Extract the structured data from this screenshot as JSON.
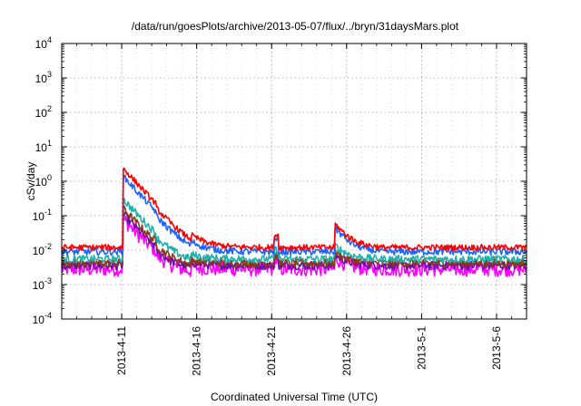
{
  "chart_data": {
    "type": "line",
    "title": "/data/run/goesPlots/archive/2013-05-07/flux/../bryn/31daysMars.plot",
    "xlabel": "Coordinated Universal Time (UTC)",
    "ylabel": "cSv/day",
    "yscale": "log",
    "ylim_exponents": [
      -4,
      4
    ],
    "y_tick_labels": [
      {
        "exp": -4,
        "base": "10",
        "sup": "-4"
      },
      {
        "exp": -3,
        "base": "10",
        "sup": "-3"
      },
      {
        "exp": -2,
        "base": "10",
        "sup": "-2"
      },
      {
        "exp": -1,
        "base": "10",
        "sup": "-1"
      },
      {
        "exp": 0,
        "base": "10",
        "sup": "0"
      },
      {
        "exp": 1,
        "base": "10",
        "sup": "1"
      },
      {
        "exp": 2,
        "base": "10",
        "sup": "2"
      },
      {
        "exp": 3,
        "base": "10",
        "sup": "3"
      },
      {
        "exp": 4,
        "base": "10",
        "sup": "4"
      }
    ],
    "xlim": [
      "2013-04-07",
      "2013-05-08"
    ],
    "x_ticks": [
      {
        "date": "2013-04-11",
        "label": "2013-4-11"
      },
      {
        "date": "2013-04-16",
        "label": "2013-4-16"
      },
      {
        "date": "2013-04-21",
        "label": "2013-4-21"
      },
      {
        "date": "2013-04-26",
        "label": "2013-4-26"
      },
      {
        "date": "2013-05-01",
        "label": "2013-5-1"
      },
      {
        "date": "2013-05-06",
        "label": "2013-5-6"
      }
    ],
    "grid": true,
    "series": [
      {
        "color": "#ff0000",
        "baseline": 0.012,
        "wiggle": 0.12,
        "peak": 2.4,
        "event2": 0.06,
        "event3": 0.028
      },
      {
        "color": "#1e64ff",
        "baseline": 0.009,
        "wiggle": 0.14,
        "peak": 1.4,
        "event2": 0.045,
        "event3": 0.02
      },
      {
        "color": "#20b2aa",
        "baseline": 0.0055,
        "wiggle": 0.16,
        "peak": 0.3,
        "event2": 0.014,
        "event3": 0.01
      },
      {
        "color": "#8b3a1a",
        "baseline": 0.0042,
        "wiggle": 0.17,
        "peak": 0.16,
        "event2": 0.009,
        "event3": 0.007
      },
      {
        "color": "#6a0dad",
        "baseline": 0.0036,
        "wiggle": 0.18,
        "peak": 0.11,
        "event2": 0.0075,
        "event3": 0.006
      },
      {
        "color": "#ff00ff",
        "baseline": 0.0028,
        "wiggle": 0.3,
        "peak": 0.08,
        "event2": 0.006,
        "event3": 0.005
      }
    ]
  }
}
